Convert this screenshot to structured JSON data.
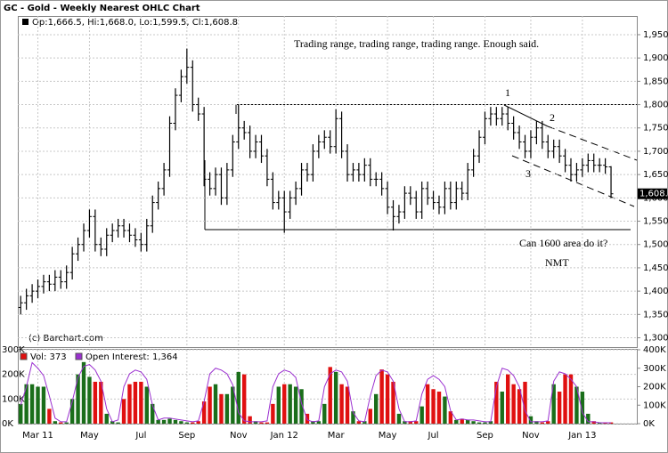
{
  "chart_data": [
    {
      "type": "ohlc",
      "title": "GC - Gold - Weekly Nearest OHLC Chart",
      "legend_text": "Op:1,666.5, Hi:1,668.0, Lo:1,599.5, Cl:1,608.8",
      "last_price_label": "1,608.8",
      "source": "(c) Barchart.com",
      "annotations": [
        "Trading range, trading range, trading range.  Enough said.",
        "1",
        "2",
        "3",
        "Can 1600 area do it?",
        "NMT"
      ],
      "color": "#000000",
      "grid": true,
      "ylim": [
        1280,
        1990
      ],
      "yticks": [
        {
          "value": 1300,
          "label": "1,300"
        },
        {
          "value": 1350,
          "label": "1,350"
        },
        {
          "value": 1400,
          "label": "1,400"
        },
        {
          "value": 1450,
          "label": "1,450"
        },
        {
          "value": 1500,
          "label": "1,500"
        },
        {
          "value": 1550,
          "label": "1,550"
        },
        {
          "value": 1600,
          "label": "1,600"
        },
        {
          "value": 1650,
          "label": "1,650"
        },
        {
          "value": 1700,
          "label": "1,700"
        },
        {
          "value": 1750,
          "label": "1,750"
        },
        {
          "value": 1800,
          "label": "1,800"
        },
        {
          "value": 1850,
          "label": "1,850"
        },
        {
          "value": 1900,
          "label": "1,900"
        },
        {
          "value": 1950,
          "label": "1,950"
        }
      ],
      "open": [
        1365,
        1375,
        1390,
        1400,
        1410,
        1420,
        1415,
        1430,
        1420,
        1440,
        1480,
        1500,
        1530,
        1560,
        1500,
        1490,
        1520,
        1530,
        1540,
        1530,
        1520,
        1510,
        1500,
        1540,
        1590,
        1620,
        1660,
        1760,
        1820,
        1860,
        1880,
        1800,
        1780,
        1640,
        1620,
        1650,
        1600,
        1660,
        1720,
        1750,
        1740,
        1700,
        1720,
        1690,
        1640,
        1590,
        1600,
        1570,
        1600,
        1620,
        1660,
        1650,
        1700,
        1720,
        1730,
        1710,
        1770,
        1700,
        1650,
        1660,
        1650,
        1670,
        1640,
        1640,
        1620,
        1580,
        1560,
        1570,
        1610,
        1600,
        1570,
        1620,
        1600,
        1590,
        1580,
        1620,
        1590,
        1620,
        1610,
        1660,
        1690,
        1730,
        1770,
        1780,
        1770,
        1780,
        1760,
        1740,
        1720,
        1700,
        1730,
        1750,
        1720,
        1700,
        1710,
        1690,
        1670,
        1650,
        1660,
        1670,
        1680,
        1670,
        1670,
        1666.5
      ],
      "high": [
        1390,
        1405,
        1415,
        1425,
        1435,
        1435,
        1445,
        1445,
        1455,
        1495,
        1515,
        1545,
        1575,
        1575,
        1515,
        1535,
        1545,
        1555,
        1555,
        1545,
        1535,
        1525,
        1555,
        1605,
        1635,
        1675,
        1775,
        1835,
        1875,
        1920,
        1895,
        1815,
        1795,
        1655,
        1665,
        1665,
        1675,
        1735,
        1800,
        1765,
        1755,
        1735,
        1735,
        1705,
        1655,
        1615,
        1615,
        1615,
        1635,
        1675,
        1675,
        1715,
        1735,
        1745,
        1745,
        1790,
        1785,
        1715,
        1675,
        1675,
        1685,
        1685,
        1655,
        1655,
        1635,
        1595,
        1585,
        1625,
        1625,
        1615,
        1635,
        1635,
        1615,
        1605,
        1635,
        1635,
        1635,
        1635,
        1675,
        1705,
        1745,
        1785,
        1795,
        1795,
        1795,
        1795,
        1775,
        1755,
        1735,
        1745,
        1765,
        1765,
        1735,
        1725,
        1725,
        1705,
        1685,
        1675,
        1685,
        1695,
        1695,
        1685,
        1685,
        1668
      ],
      "low": [
        1350,
        1360,
        1375,
        1385,
        1395,
        1400,
        1400,
        1405,
        1405,
        1425,
        1465,
        1485,
        1515,
        1485,
        1475,
        1475,
        1505,
        1515,
        1515,
        1505,
        1495,
        1485,
        1485,
        1525,
        1575,
        1605,
        1645,
        1745,
        1805,
        1845,
        1785,
        1765,
        1625,
        1605,
        1605,
        1585,
        1585,
        1645,
        1705,
        1725,
        1685,
        1685,
        1675,
        1625,
        1575,
        1575,
        1525,
        1555,
        1585,
        1605,
        1635,
        1635,
        1685,
        1705,
        1695,
        1695,
        1685,
        1635,
        1635,
        1635,
        1635,
        1625,
        1625,
        1605,
        1565,
        1530,
        1545,
        1555,
        1585,
        1555,
        1555,
        1585,
        1575,
        1565,
        1565,
        1575,
        1575,
        1595,
        1595,
        1645,
        1675,
        1715,
        1755,
        1755,
        1755,
        1745,
        1725,
        1705,
        1685,
        1685,
        1715,
        1705,
        1685,
        1685,
        1675,
        1655,
        1635,
        1635,
        1645,
        1655,
        1655,
        1655,
        1651.5,
        1599.5
      ],
      "close": [
        1375,
        1390,
        1400,
        1410,
        1420,
        1415,
        1430,
        1420,
        1440,
        1480,
        1500,
        1530,
        1560,
        1500,
        1490,
        1520,
        1530,
        1540,
        1530,
        1520,
        1510,
        1500,
        1540,
        1590,
        1620,
        1660,
        1760,
        1820,
        1860,
        1880,
        1800,
        1780,
        1640,
        1620,
        1650,
        1600,
        1660,
        1720,
        1750,
        1740,
        1700,
        1720,
        1690,
        1640,
        1590,
        1600,
        1570,
        1600,
        1620,
        1660,
        1650,
        1700,
        1720,
        1730,
        1710,
        1770,
        1700,
        1650,
        1660,
        1650,
        1670,
        1640,
        1640,
        1620,
        1580,
        1560,
        1570,
        1610,
        1600,
        1570,
        1620,
        1600,
        1590,
        1580,
        1620,
        1590,
        1620,
        1610,
        1660,
        1690,
        1730,
        1770,
        1780,
        1770,
        1780,
        1760,
        1740,
        1720,
        1700,
        1730,
        1750,
        1720,
        1700,
        1710,
        1690,
        1670,
        1650,
        1660,
        1670,
        1680,
        1670,
        1670,
        1666.5,
        1608.8
      ]
    },
    {
      "type": "volume",
      "categories": [
        null,
        null,
        null,
        "Mar 11",
        null,
        null,
        null,
        null,
        null,
        null,
        null,
        null,
        "May",
        null,
        null,
        null,
        null,
        null,
        null,
        null,
        null,
        "Jul",
        null,
        null,
        null,
        null,
        null,
        null,
        null,
        "Sep",
        null,
        null,
        null,
        null,
        null,
        null,
        null,
        null,
        "Nov",
        null,
        null,
        null,
        null,
        null,
        null,
        null,
        "Jan 12",
        null,
        null,
        null,
        null,
        null,
        null,
        null,
        null,
        "Mar",
        null,
        null,
        null,
        null,
        null,
        null,
        null,
        null,
        "May",
        null,
        null,
        null,
        null,
        null,
        null,
        null,
        "Jul",
        null,
        null,
        null,
        null,
        null,
        null,
        null,
        null,
        "Sep",
        null,
        null,
        null,
        null,
        null,
        null,
        null,
        "Nov",
        null,
        null,
        null,
        null,
        null,
        null,
        null,
        null,
        "Jan 13",
        null,
        null,
        null,
        null,
        null
      ],
      "ylim": [
        0,
        300
      ],
      "yticks": [
        {
          "value": 0,
          "label": "0K"
        },
        {
          "value": 100,
          "label": "100K"
        },
        {
          "value": 200,
          "label": "200K"
        },
        {
          "value": 300,
          "label": "300K"
        }
      ],
      "y2lim": [
        0,
        400
      ],
      "y2ticks": [
        {
          "value": 0,
          "label": "0K"
        },
        {
          "value": 100,
          "label": "100K"
        },
        {
          "value": 200,
          "label": "200K"
        },
        {
          "value": 300,
          "label": "300K"
        },
        {
          "value": 400,
          "label": "400K"
        }
      ],
      "up_color": "#1a6e1a",
      "grid": true,
      "series": [
        {
          "name": "Vol: 373",
          "color": "#e01010",
          "values": [
            80,
            160,
            160,
            150,
            150,
            60,
            10,
            5,
            5,
            100,
            200,
            250,
            190,
            170,
            170,
            40,
            10,
            5,
            100,
            160,
            170,
            170,
            150,
            80,
            15,
            15,
            20,
            15,
            10,
            5,
            5,
            10,
            90,
            150,
            160,
            120,
            120,
            150,
            210,
            200,
            30,
            10,
            5,
            5,
            80,
            150,
            160,
            160,
            150,
            140,
            40,
            10,
            10,
            80,
            230,
            210,
            160,
            150,
            50,
            10,
            10,
            60,
            120,
            220,
            200,
            170,
            40,
            10,
            10,
            10,
            70,
            160,
            140,
            130,
            110,
            50,
            15,
            20,
            15,
            10,
            5,
            5,
            10,
            170,
            130,
            200,
            160,
            140,
            170,
            30,
            10,
            5,
            10,
            160,
            130,
            200,
            200,
            150,
            130,
            40,
            10,
            5,
            5,
            5
          ]
        },
        {
          "name": "Open Interest: 1,364",
          "color": "#9b30d0",
          "axis": "y2",
          "values": [
            100,
            200,
            330,
            300,
            260,
            150,
            30,
            10,
            10,
            120,
            250,
            310,
            320,
            290,
            230,
            80,
            10,
            20,
            200,
            270,
            290,
            280,
            240,
            100,
            20,
            30,
            30,
            25,
            20,
            15,
            10,
            15,
            120,
            270,
            300,
            290,
            270,
            210,
            60,
            15,
            10,
            10,
            10,
            15,
            200,
            270,
            290,
            280,
            250,
            110,
            20,
            10,
            15,
            200,
            270,
            290,
            280,
            230,
            60,
            15,
            10,
            150,
            260,
            290,
            280,
            230,
            80,
            10,
            10,
            15,
            160,
            240,
            260,
            240,
            200,
            70,
            20,
            25,
            20,
            20,
            15,
            10,
            10,
            200,
            300,
            290,
            260,
            200,
            70,
            10,
            10,
            10,
            15,
            230,
            280,
            270,
            240,
            200,
            60,
            10,
            10,
            5,
            5,
            5
          ]
        }
      ]
    }
  ]
}
